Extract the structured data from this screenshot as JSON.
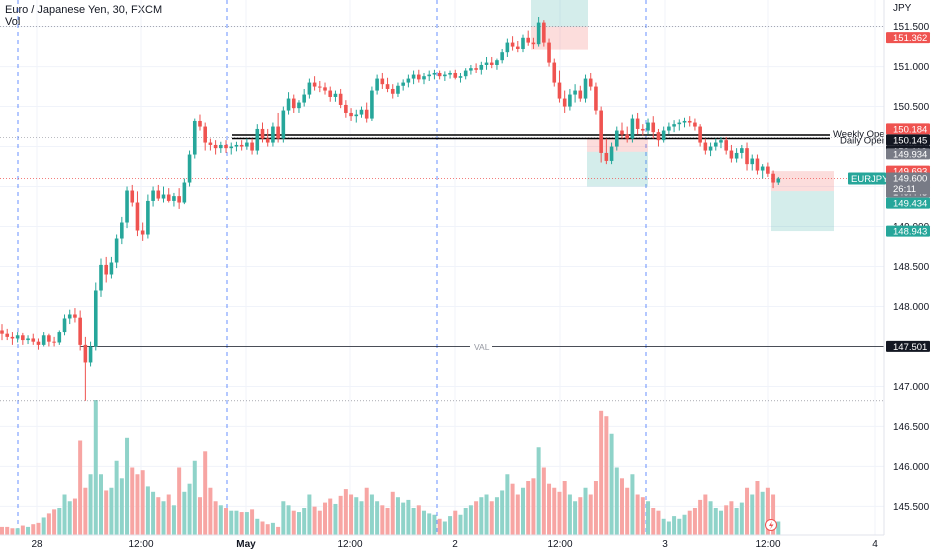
{
  "header": {
    "title": "Euro / Japanese Yen, 30, FXCM",
    "volume_label": "Vol"
  },
  "chart_data": {
    "type": "candlestick",
    "symbol": "EURJPY",
    "currency": "JPY",
    "x_tick_labels": [
      "28",
      "12:00",
      "May",
      "12:00",
      "2",
      "12:00",
      "3",
      "12:00",
      "4"
    ],
    "y_ticks": [
      151.5,
      151.0,
      150.5,
      150.0,
      149.5,
      149.0,
      148.5,
      148.0,
      147.5,
      147.0,
      146.5,
      146.0,
      145.5
    ],
    "ylim": [
      145.33,
      151.77
    ],
    "grid": true,
    "candle_colors": {
      "up": "#26a69a",
      "down": "#ef5350"
    },
    "volume_colors": {
      "up": "#8fd3c9",
      "down": "#f7a5a3"
    },
    "last_price": 149.6,
    "countdown": "26:11",
    "price_badges": [
      {
        "value": "151.362",
        "color": "#ef5350"
      },
      {
        "value": "150.184",
        "color": "#ef5350"
      },
      {
        "value": "150.145",
        "color": "#131722"
      },
      {
        "value": "150.113",
        "color": "#131722"
      },
      {
        "value": "149.934",
        "color": "#787b86"
      },
      {
        "value": "149.693",
        "color": "#ef5350"
      },
      {
        "value": "149.443",
        "color": "#787b86"
      },
      {
        "value": "149.434",
        "color": "#26a69a"
      },
      {
        "value": "148.943",
        "color": "#26a69a"
      },
      {
        "value": "147.501",
        "color": "#131722"
      }
    ],
    "levels": [
      {
        "name": "Weekly Open",
        "value": 150.145
      },
      {
        "name": "Daily Open",
        "value": 150.113
      },
      {
        "name": "VAL",
        "value": 147.501
      }
    ],
    "dotted_levels": [
      151.5,
      150.113,
      149.6,
      146.82
    ],
    "positions": [
      {
        "type": "short",
        "entry": 151.362,
        "stop": 151.6,
        "target": 151.5
      },
      {
        "type": "long",
        "entry": 149.934,
        "stop": 150.113,
        "target": 149.5
      },
      {
        "type": "short",
        "entry": 149.443,
        "stop": 149.693,
        "target": 148.943
      }
    ],
    "candles": [
      {
        "o": 147.7,
        "h": 147.78,
        "l": 147.58,
        "c": 147.66,
        "v": 0.06
      },
      {
        "o": 147.66,
        "h": 147.72,
        "l": 147.58,
        "c": 147.62,
        "v": 0.06
      },
      {
        "o": 147.62,
        "h": 147.68,
        "l": 147.52,
        "c": 147.6,
        "v": 0.05
      },
      {
        "o": 147.6,
        "h": 147.68,
        "l": 147.55,
        "c": 147.64,
        "v": 0.05
      },
      {
        "o": 147.64,
        "h": 147.67,
        "l": 147.52,
        "c": 147.58,
        "v": 0.07
      },
      {
        "o": 147.58,
        "h": 147.64,
        "l": 147.53,
        "c": 147.6,
        "v": 0.06
      },
      {
        "o": 147.6,
        "h": 147.66,
        "l": 147.52,
        "c": 147.56,
        "v": 0.08
      },
      {
        "o": 147.56,
        "h": 147.6,
        "l": 147.46,
        "c": 147.52,
        "v": 0.09
      },
      {
        "o": 147.52,
        "h": 147.68,
        "l": 147.5,
        "c": 147.64,
        "v": 0.13
      },
      {
        "o": 147.64,
        "h": 147.66,
        "l": 147.5,
        "c": 147.56,
        "v": 0.16
      },
      {
        "o": 147.56,
        "h": 147.62,
        "l": 147.5,
        "c": 147.55,
        "v": 0.19
      },
      {
        "o": 147.55,
        "h": 147.7,
        "l": 147.52,
        "c": 147.68,
        "v": 0.2
      },
      {
        "o": 147.68,
        "h": 147.9,
        "l": 147.64,
        "c": 147.85,
        "v": 0.3
      },
      {
        "o": 147.85,
        "h": 147.96,
        "l": 147.78,
        "c": 147.9,
        "v": 0.25
      },
      {
        "o": 147.9,
        "h": 147.98,
        "l": 147.8,
        "c": 147.86,
        "v": 0.27
      },
      {
        "o": 147.86,
        "h": 147.95,
        "l": 147.45,
        "c": 147.52,
        "v": 0.7
      },
      {
        "o": 147.52,
        "h": 147.62,
        "l": 146.82,
        "c": 147.3,
        "v": 0.35
      },
      {
        "o": 147.3,
        "h": 147.56,
        "l": 147.25,
        "c": 147.5,
        "v": 0.45
      },
      {
        "o": 147.5,
        "h": 148.3,
        "l": 147.45,
        "c": 148.2,
        "v": 1.0
      },
      {
        "o": 148.2,
        "h": 148.6,
        "l": 148.12,
        "c": 148.52,
        "v": 0.45
      },
      {
        "o": 148.52,
        "h": 148.62,
        "l": 148.3,
        "c": 148.4,
        "v": 0.33
      },
      {
        "o": 148.4,
        "h": 148.62,
        "l": 148.35,
        "c": 148.55,
        "v": 0.35
      },
      {
        "o": 148.55,
        "h": 148.9,
        "l": 148.48,
        "c": 148.85,
        "v": 0.55
      },
      {
        "o": 148.85,
        "h": 149.12,
        "l": 148.78,
        "c": 149.05,
        "v": 0.42
      },
      {
        "o": 149.05,
        "h": 149.5,
        "l": 148.98,
        "c": 149.45,
        "v": 0.72
      },
      {
        "o": 149.45,
        "h": 149.52,
        "l": 149.25,
        "c": 149.3,
        "v": 0.5
      },
      {
        "o": 149.3,
        "h": 149.44,
        "l": 148.88,
        "c": 148.95,
        "v": 0.45
      },
      {
        "o": 148.95,
        "h": 149.05,
        "l": 148.82,
        "c": 148.9,
        "v": 0.48
      },
      {
        "o": 148.9,
        "h": 149.4,
        "l": 148.85,
        "c": 149.32,
        "v": 0.36
      },
      {
        "o": 149.32,
        "h": 149.5,
        "l": 149.25,
        "c": 149.45,
        "v": 0.32
      },
      {
        "o": 149.45,
        "h": 149.52,
        "l": 149.32,
        "c": 149.35,
        "v": 0.28
      },
      {
        "o": 149.35,
        "h": 149.5,
        "l": 149.3,
        "c": 149.4,
        "v": 0.25
      },
      {
        "o": 149.4,
        "h": 149.48,
        "l": 149.3,
        "c": 149.32,
        "v": 0.3
      },
      {
        "o": 149.32,
        "h": 149.42,
        "l": 149.25,
        "c": 149.38,
        "v": 0.22
      },
      {
        "o": 149.38,
        "h": 149.48,
        "l": 149.22,
        "c": 149.3,
        "v": 0.5
      },
      {
        "o": 149.3,
        "h": 149.6,
        "l": 149.28,
        "c": 149.55,
        "v": 0.32
      },
      {
        "o": 149.55,
        "h": 149.95,
        "l": 149.5,
        "c": 149.9,
        "v": 0.38
      },
      {
        "o": 149.9,
        "h": 150.35,
        "l": 149.85,
        "c": 150.32,
        "v": 0.55
      },
      {
        "o": 150.32,
        "h": 150.4,
        "l": 150.2,
        "c": 150.25,
        "v": 0.28
      },
      {
        "o": 150.25,
        "h": 150.3,
        "l": 149.95,
        "c": 150.05,
        "v": 0.62
      },
      {
        "o": 150.05,
        "h": 150.1,
        "l": 149.95,
        "c": 150.02,
        "v": 0.35
      },
      {
        "o": 150.02,
        "h": 150.08,
        "l": 149.9,
        "c": 149.98,
        "v": 0.25
      },
      {
        "o": 149.98,
        "h": 150.06,
        "l": 149.92,
        "c": 150.02,
        "v": 0.22
      },
      {
        "o": 150.02,
        "h": 150.08,
        "l": 149.92,
        "c": 149.98,
        "v": 0.2
      },
      {
        "o": 149.98,
        "h": 150.05,
        "l": 149.9,
        "c": 150.0,
        "v": 0.18
      },
      {
        "o": 150.0,
        "h": 150.06,
        "l": 149.94,
        "c": 150.02,
        "v": 0.18
      },
      {
        "o": 150.02,
        "h": 150.08,
        "l": 149.95,
        "c": 150.0,
        "v": 0.17
      },
      {
        "o": 150.0,
        "h": 150.1,
        "l": 149.96,
        "c": 150.05,
        "v": 0.17
      },
      {
        "o": 150.05,
        "h": 150.1,
        "l": 149.9,
        "c": 149.95,
        "v": 0.19
      },
      {
        "o": 149.95,
        "h": 150.28,
        "l": 149.9,
        "c": 150.22,
        "v": 0.12
      },
      {
        "o": 150.22,
        "h": 150.3,
        "l": 150.05,
        "c": 150.1,
        "v": 0.1
      },
      {
        "o": 150.1,
        "h": 150.22,
        "l": 150.0,
        "c": 150.05,
        "v": 0.08
      },
      {
        "o": 150.05,
        "h": 150.3,
        "l": 150.0,
        "c": 150.25,
        "v": 0.09
      },
      {
        "o": 150.25,
        "h": 150.42,
        "l": 150.05,
        "c": 150.1,
        "v": 0.06
      },
      {
        "o": 150.1,
        "h": 150.5,
        "l": 150.05,
        "c": 150.45,
        "v": 0.25
      },
      {
        "o": 150.45,
        "h": 150.68,
        "l": 150.4,
        "c": 150.6,
        "v": 0.22
      },
      {
        "o": 150.6,
        "h": 150.65,
        "l": 150.42,
        "c": 150.48,
        "v": 0.18
      },
      {
        "o": 150.48,
        "h": 150.58,
        "l": 150.42,
        "c": 150.55,
        "v": 0.17
      },
      {
        "o": 150.55,
        "h": 150.72,
        "l": 150.5,
        "c": 150.65,
        "v": 0.2
      },
      {
        "o": 150.65,
        "h": 150.85,
        "l": 150.6,
        "c": 150.8,
        "v": 0.3
      },
      {
        "o": 150.8,
        "h": 150.88,
        "l": 150.7,
        "c": 150.75,
        "v": 0.21
      },
      {
        "o": 150.75,
        "h": 150.82,
        "l": 150.68,
        "c": 150.74,
        "v": 0.18
      },
      {
        "o": 150.74,
        "h": 150.8,
        "l": 150.65,
        "c": 150.7,
        "v": 0.24
      },
      {
        "o": 150.7,
        "h": 150.75,
        "l": 150.56,
        "c": 150.62,
        "v": 0.27
      },
      {
        "o": 150.62,
        "h": 150.7,
        "l": 150.56,
        "c": 150.66,
        "v": 0.23
      },
      {
        "o": 150.66,
        "h": 150.72,
        "l": 150.48,
        "c": 150.52,
        "v": 0.29
      },
      {
        "o": 150.52,
        "h": 150.58,
        "l": 150.36,
        "c": 150.42,
        "v": 0.34
      },
      {
        "o": 150.42,
        "h": 150.48,
        "l": 150.32,
        "c": 150.38,
        "v": 0.3
      },
      {
        "o": 150.38,
        "h": 150.46,
        "l": 150.3,
        "c": 150.4,
        "v": 0.28
      },
      {
        "o": 150.4,
        "h": 150.5,
        "l": 150.36,
        "c": 150.46,
        "v": 0.25
      },
      {
        "o": 150.46,
        "h": 150.55,
        "l": 150.3,
        "c": 150.35,
        "v": 0.35
      },
      {
        "o": 150.35,
        "h": 150.75,
        "l": 150.32,
        "c": 150.7,
        "v": 0.3
      },
      {
        "o": 150.7,
        "h": 150.9,
        "l": 150.65,
        "c": 150.85,
        "v": 0.25
      },
      {
        "o": 150.85,
        "h": 150.92,
        "l": 150.72,
        "c": 150.78,
        "v": 0.22
      },
      {
        "o": 150.78,
        "h": 150.86,
        "l": 150.68,
        "c": 150.72,
        "v": 0.2
      },
      {
        "o": 150.72,
        "h": 150.78,
        "l": 150.6,
        "c": 150.66,
        "v": 0.32
      },
      {
        "o": 150.66,
        "h": 150.8,
        "l": 150.62,
        "c": 150.76,
        "v": 0.28
      },
      {
        "o": 150.76,
        "h": 150.84,
        "l": 150.7,
        "c": 150.8,
        "v": 0.24
      },
      {
        "o": 150.8,
        "h": 150.9,
        "l": 150.74,
        "c": 150.85,
        "v": 0.26
      },
      {
        "o": 150.85,
        "h": 150.95,
        "l": 150.78,
        "c": 150.9,
        "v": 0.2
      },
      {
        "o": 150.9,
        "h": 150.96,
        "l": 150.8,
        "c": 150.84,
        "v": 0.22
      },
      {
        "o": 150.84,
        "h": 150.92,
        "l": 150.78,
        "c": 150.88,
        "v": 0.18
      },
      {
        "o": 150.88,
        "h": 150.95,
        "l": 150.82,
        "c": 150.9,
        "v": 0.16
      },
      {
        "o": 150.9,
        "h": 150.96,
        "l": 150.84,
        "c": 150.92,
        "v": 0.15
      },
      {
        "o": 150.92,
        "h": 150.95,
        "l": 150.84,
        "c": 150.88,
        "v": 0.12
      },
      {
        "o": 150.88,
        "h": 150.94,
        "l": 150.82,
        "c": 150.9,
        "v": 0.1
      },
      {
        "o": 150.9,
        "h": 150.95,
        "l": 150.85,
        "c": 150.92,
        "v": 0.14
      },
      {
        "o": 150.92,
        "h": 150.96,
        "l": 150.84,
        "c": 150.86,
        "v": 0.18
      },
      {
        "o": 150.86,
        "h": 150.92,
        "l": 150.8,
        "c": 150.88,
        "v": 0.15
      },
      {
        "o": 150.88,
        "h": 150.98,
        "l": 150.84,
        "c": 150.95,
        "v": 0.2
      },
      {
        "o": 150.95,
        "h": 151.02,
        "l": 150.9,
        "c": 150.98,
        "v": 0.22
      },
      {
        "o": 150.98,
        "h": 151.04,
        "l": 150.92,
        "c": 150.96,
        "v": 0.25
      },
      {
        "o": 150.96,
        "h": 151.06,
        "l": 150.9,
        "c": 151.02,
        "v": 0.28
      },
      {
        "o": 151.02,
        "h": 151.12,
        "l": 150.96,
        "c": 151.05,
        "v": 0.3
      },
      {
        "o": 151.05,
        "h": 151.12,
        "l": 150.98,
        "c": 151.02,
        "v": 0.25
      },
      {
        "o": 151.02,
        "h": 151.1,
        "l": 150.96,
        "c": 151.08,
        "v": 0.28
      },
      {
        "o": 151.08,
        "h": 151.22,
        "l": 151.04,
        "c": 151.18,
        "v": 0.33
      },
      {
        "o": 151.18,
        "h": 151.35,
        "l": 151.12,
        "c": 151.3,
        "v": 0.45
      },
      {
        "o": 151.3,
        "h": 151.38,
        "l": 151.2,
        "c": 151.25,
        "v": 0.38
      },
      {
        "o": 151.25,
        "h": 151.32,
        "l": 151.18,
        "c": 151.22,
        "v": 0.3
      },
      {
        "o": 151.22,
        "h": 151.4,
        "l": 151.18,
        "c": 151.36,
        "v": 0.35
      },
      {
        "o": 151.36,
        "h": 151.45,
        "l": 151.26,
        "c": 151.3,
        "v": 0.4
      },
      {
        "o": 151.3,
        "h": 151.36,
        "l": 151.22,
        "c": 151.28,
        "v": 0.42
      },
      {
        "o": 151.28,
        "h": 151.62,
        "l": 151.25,
        "c": 151.55,
        "v": 0.65
      },
      {
        "o": 151.55,
        "h": 151.58,
        "l": 151.25,
        "c": 151.3,
        "v": 0.5
      },
      {
        "o": 151.3,
        "h": 151.35,
        "l": 151.0,
        "c": 151.05,
        "v": 0.38
      },
      {
        "o": 151.05,
        "h": 151.1,
        "l": 150.75,
        "c": 150.8,
        "v": 0.35
      },
      {
        "o": 150.8,
        "h": 150.95,
        "l": 150.55,
        "c": 150.6,
        "v": 0.32
      },
      {
        "o": 150.6,
        "h": 150.7,
        "l": 150.42,
        "c": 150.5,
        "v": 0.4
      },
      {
        "o": 150.5,
        "h": 150.72,
        "l": 150.45,
        "c": 150.65,
        "v": 0.3
      },
      {
        "o": 150.65,
        "h": 150.78,
        "l": 150.55,
        "c": 150.7,
        "v": 0.25
      },
      {
        "o": 150.7,
        "h": 150.76,
        "l": 150.56,
        "c": 150.6,
        "v": 0.28
      },
      {
        "o": 150.6,
        "h": 150.9,
        "l": 150.55,
        "c": 150.85,
        "v": 0.35
      },
      {
        "o": 150.85,
        "h": 150.92,
        "l": 150.7,
        "c": 150.75,
        "v": 0.3
      },
      {
        "o": 150.75,
        "h": 150.8,
        "l": 150.4,
        "c": 150.45,
        "v": 0.4
      },
      {
        "o": 150.45,
        "h": 150.5,
        "l": 149.8,
        "c": 149.92,
        "v": 0.92
      },
      {
        "o": 149.92,
        "h": 150.1,
        "l": 149.78,
        "c": 149.82,
        "v": 0.88
      },
      {
        "o": 149.82,
        "h": 150.05,
        "l": 149.78,
        "c": 150.0,
        "v": 0.75
      },
      {
        "o": 150.0,
        "h": 150.25,
        "l": 149.95,
        "c": 150.2,
        "v": 0.5
      },
      {
        "o": 150.2,
        "h": 150.3,
        "l": 150.1,
        "c": 150.15,
        "v": 0.42
      },
      {
        "o": 150.15,
        "h": 150.25,
        "l": 150.05,
        "c": 150.1,
        "v": 0.35
      },
      {
        "o": 150.1,
        "h": 150.4,
        "l": 150.05,
        "c": 150.35,
        "v": 0.45
      },
      {
        "o": 150.35,
        "h": 150.42,
        "l": 150.15,
        "c": 150.22,
        "v": 0.3
      },
      {
        "o": 150.22,
        "h": 150.28,
        "l": 150.14,
        "c": 150.2,
        "v": 0.28
      },
      {
        "o": 150.2,
        "h": 150.35,
        "l": 150.15,
        "c": 150.3,
        "v": 0.25
      },
      {
        "o": 150.3,
        "h": 150.38,
        "l": 150.1,
        "c": 150.18,
        "v": 0.2
      },
      {
        "o": 150.18,
        "h": 150.22,
        "l": 150.0,
        "c": 150.08,
        "v": 0.18
      },
      {
        "o": 150.08,
        "h": 150.25,
        "l": 150.05,
        "c": 150.2,
        "v": 0.12
      },
      {
        "o": 150.2,
        "h": 150.3,
        "l": 150.15,
        "c": 150.25,
        "v": 0.1
      },
      {
        "o": 150.25,
        "h": 150.33,
        "l": 150.18,
        "c": 150.28,
        "v": 0.14
      },
      {
        "o": 150.28,
        "h": 150.34,
        "l": 150.2,
        "c": 150.3,
        "v": 0.12
      },
      {
        "o": 150.3,
        "h": 150.36,
        "l": 150.24,
        "c": 150.32,
        "v": 0.15
      },
      {
        "o": 150.32,
        "h": 150.38,
        "l": 150.25,
        "c": 150.3,
        "v": 0.18
      },
      {
        "o": 150.3,
        "h": 150.35,
        "l": 150.2,
        "c": 150.25,
        "v": 0.2
      },
      {
        "o": 150.25,
        "h": 150.28,
        "l": 150.0,
        "c": 150.05,
        "v": 0.26
      },
      {
        "o": 150.05,
        "h": 150.1,
        "l": 149.9,
        "c": 149.95,
        "v": 0.3
      },
      {
        "o": 149.95,
        "h": 150.05,
        "l": 149.88,
        "c": 150.0,
        "v": 0.25
      },
      {
        "o": 150.0,
        "h": 150.1,
        "l": 149.95,
        "c": 150.05,
        "v": 0.2
      },
      {
        "o": 150.05,
        "h": 150.12,
        "l": 149.98,
        "c": 150.08,
        "v": 0.18
      },
      {
        "o": 150.08,
        "h": 150.12,
        "l": 149.9,
        "c": 149.95,
        "v": 0.22
      },
      {
        "o": 149.95,
        "h": 150.02,
        "l": 149.8,
        "c": 149.85,
        "v": 0.25
      },
      {
        "o": 149.85,
        "h": 149.98,
        "l": 149.8,
        "c": 149.92,
        "v": 0.2
      },
      {
        "o": 149.92,
        "h": 150.02,
        "l": 149.85,
        "c": 149.98,
        "v": 0.24
      },
      {
        "o": 149.98,
        "h": 150.05,
        "l": 149.7,
        "c": 149.78,
        "v": 0.35
      },
      {
        "o": 149.78,
        "h": 149.9,
        "l": 149.7,
        "c": 149.85,
        "v": 0.3
      },
      {
        "o": 149.85,
        "h": 149.9,
        "l": 149.65,
        "c": 149.7,
        "v": 0.4
      },
      {
        "o": 149.7,
        "h": 149.78,
        "l": 149.6,
        "c": 149.75,
        "v": 0.32
      },
      {
        "o": 149.75,
        "h": 149.8,
        "l": 149.62,
        "c": 149.66,
        "v": 0.35
      },
      {
        "o": 149.66,
        "h": 149.7,
        "l": 149.48,
        "c": 149.55,
        "v": 0.3
      },
      {
        "o": 149.55,
        "h": 149.62,
        "l": 149.52,
        "c": 149.6,
        "v": 0.1
      }
    ]
  }
}
